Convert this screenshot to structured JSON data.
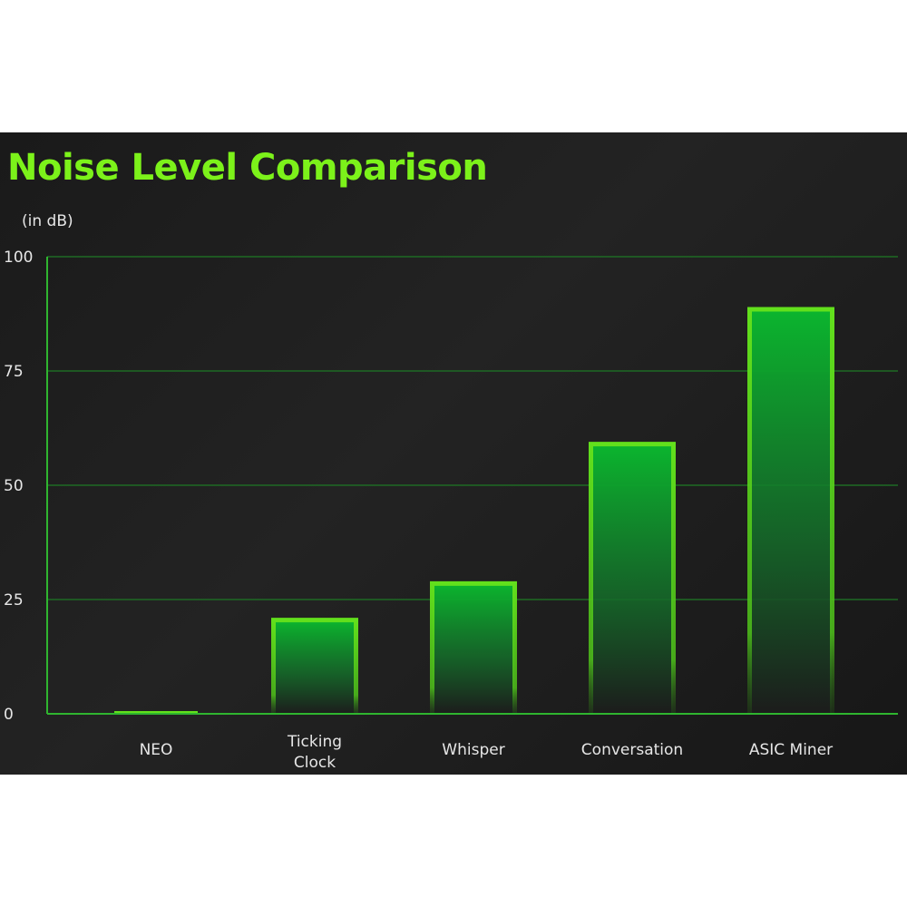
{
  "chart_data": {
    "type": "bar",
    "title": "Noise Level Comparison",
    "unit_label": "(in dB)",
    "categories": [
      "NEO",
      "Ticking Clock",
      "Whisper",
      "Conversation",
      "ASIC Miner"
    ],
    "category_lines": [
      [
        "NEO"
      ],
      [
        "Ticking",
        "Clock"
      ],
      [
        "Whisper"
      ],
      [
        "Conversation"
      ],
      [
        "ASIC Miner"
      ]
    ],
    "values": [
      0.5,
      21,
      29,
      59.5,
      89
    ],
    "ylim": [
      0,
      100
    ],
    "yticks": [
      0,
      25,
      50,
      75,
      100
    ],
    "grid": true,
    "legend": "none"
  },
  "colors": {
    "background": "#1c1c1c",
    "title": "#7cf21a",
    "bar_outline": "#62e01c",
    "bar_fill_top": "#0bb52e",
    "grid": "#1e6b24",
    "axis": "#2fb52f",
    "text": "#e6e6e6"
  }
}
